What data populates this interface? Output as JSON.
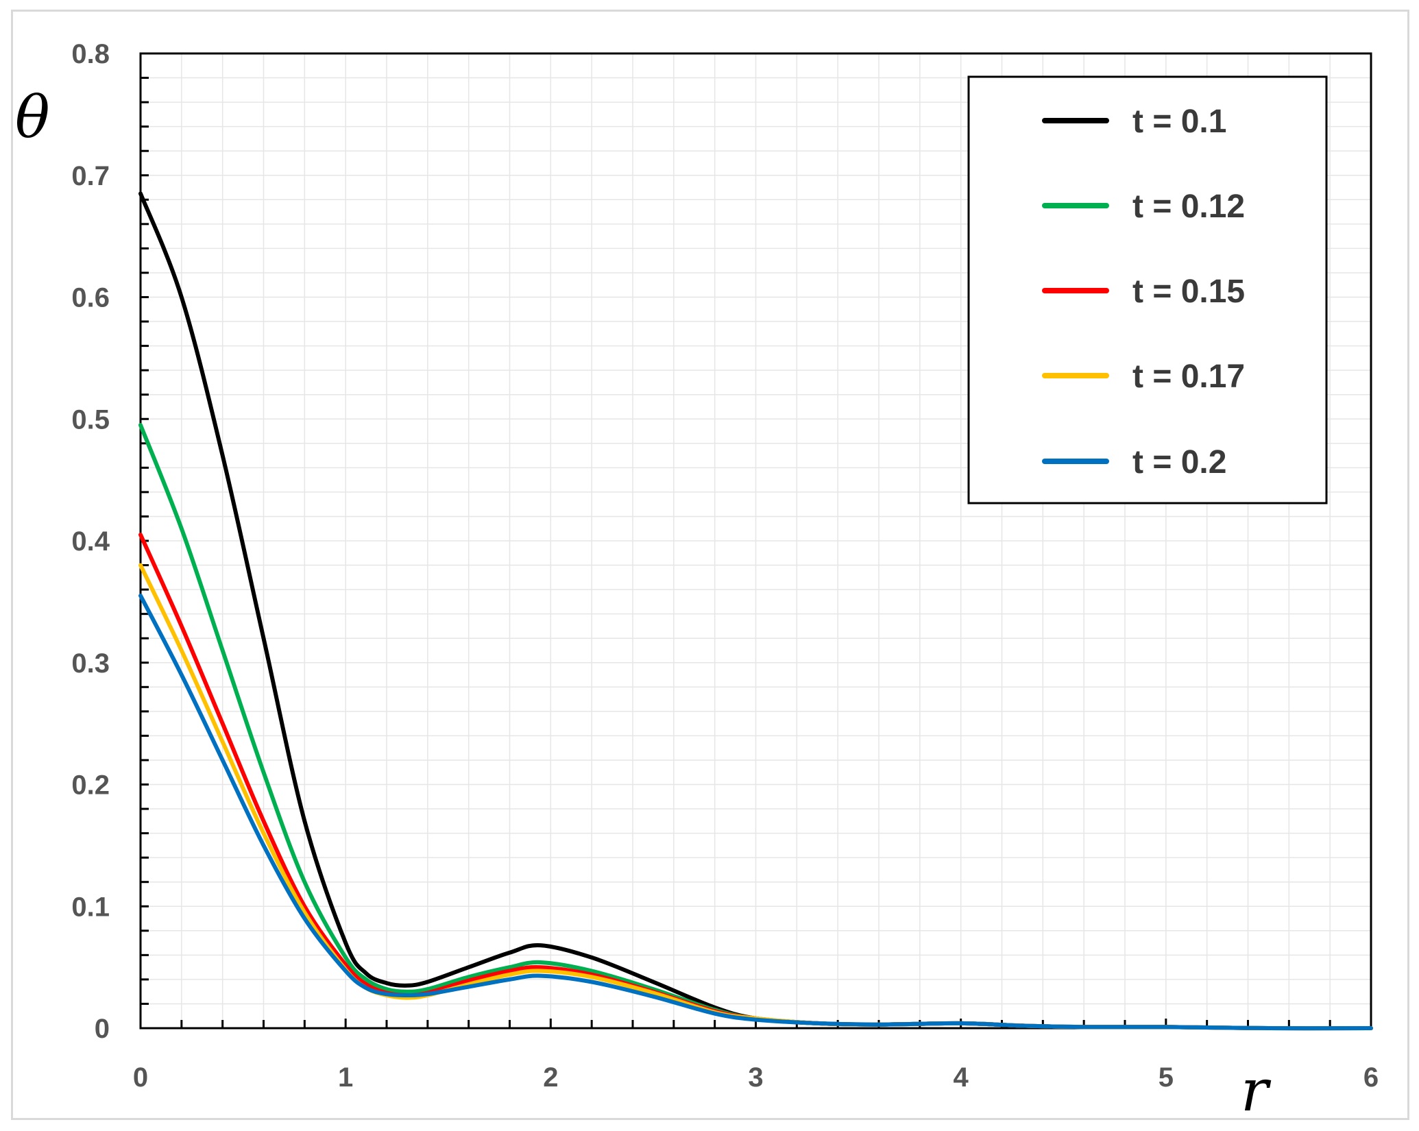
{
  "chart_data": {
    "type": "line",
    "xlabel": "r",
    "ylabel": "θ",
    "xlim": [
      0,
      6
    ],
    "ylim": [
      0,
      0.8
    ],
    "x_ticks": [
      "0",
      "1",
      "2",
      "3",
      "4",
      "5",
      "6"
    ],
    "y_ticks": [
      "0",
      "0.1",
      "0.2",
      "0.3",
      "0.4",
      "0.5",
      "0.6",
      "0.7",
      "0.8"
    ],
    "grid": true,
    "legend_position": "top-right",
    "x": [
      0,
      0.2,
      0.4,
      0.6,
      0.8,
      1.0,
      1.1,
      1.2,
      1.3,
      1.4,
      1.6,
      1.8,
      1.95,
      2.2,
      2.5,
      2.8,
      3.0,
      3.3,
      3.6,
      4.0,
      4.3,
      4.6,
      5.0,
      5.5,
      6.0
    ],
    "series": [
      {
        "name": "t = 0.1",
        "color": "#000000",
        "values": [
          0.685,
          0.6,
          0.47,
          0.32,
          0.17,
          0.07,
          0.045,
          0.037,
          0.035,
          0.038,
          0.05,
          0.062,
          0.068,
          0.058,
          0.038,
          0.017,
          0.008,
          0.004,
          0.003,
          0.004,
          0.002,
          0.001,
          0.001,
          0.0,
          0.0
        ]
      },
      {
        "name": "t = 0.12",
        "color": "#00b050",
        "values": [
          0.495,
          0.41,
          0.31,
          0.21,
          0.12,
          0.058,
          0.04,
          0.032,
          0.03,
          0.032,
          0.042,
          0.05,
          0.054,
          0.047,
          0.032,
          0.015,
          0.008,
          0.004,
          0.003,
          0.004,
          0.002,
          0.001,
          0.001,
          0.0,
          0.0
        ]
      },
      {
        "name": "t = 0.15",
        "color": "#ff0000",
        "values": [
          0.405,
          0.33,
          0.25,
          0.17,
          0.1,
          0.052,
          0.036,
          0.029,
          0.027,
          0.029,
          0.039,
          0.047,
          0.05,
          0.044,
          0.03,
          0.014,
          0.008,
          0.004,
          0.003,
          0.004,
          0.002,
          0.001,
          0.001,
          0.0,
          0.0
        ]
      },
      {
        "name": "t = 0.17",
        "color": "#ffc000",
        "values": [
          0.38,
          0.31,
          0.235,
          0.16,
          0.095,
          0.048,
          0.033,
          0.027,
          0.025,
          0.027,
          0.036,
          0.044,
          0.047,
          0.042,
          0.029,
          0.013,
          0.008,
          0.004,
          0.003,
          0.004,
          0.002,
          0.001,
          0.001,
          0.0,
          0.0
        ]
      },
      {
        "name": "t = 0.2",
        "color": "#0070c0",
        "values": [
          0.355,
          0.29,
          0.22,
          0.15,
          0.09,
          0.047,
          0.033,
          0.028,
          0.027,
          0.028,
          0.034,
          0.04,
          0.043,
          0.038,
          0.026,
          0.012,
          0.007,
          0.004,
          0.003,
          0.004,
          0.002,
          0.001,
          0.001,
          0.0,
          0.0
        ]
      }
    ]
  }
}
